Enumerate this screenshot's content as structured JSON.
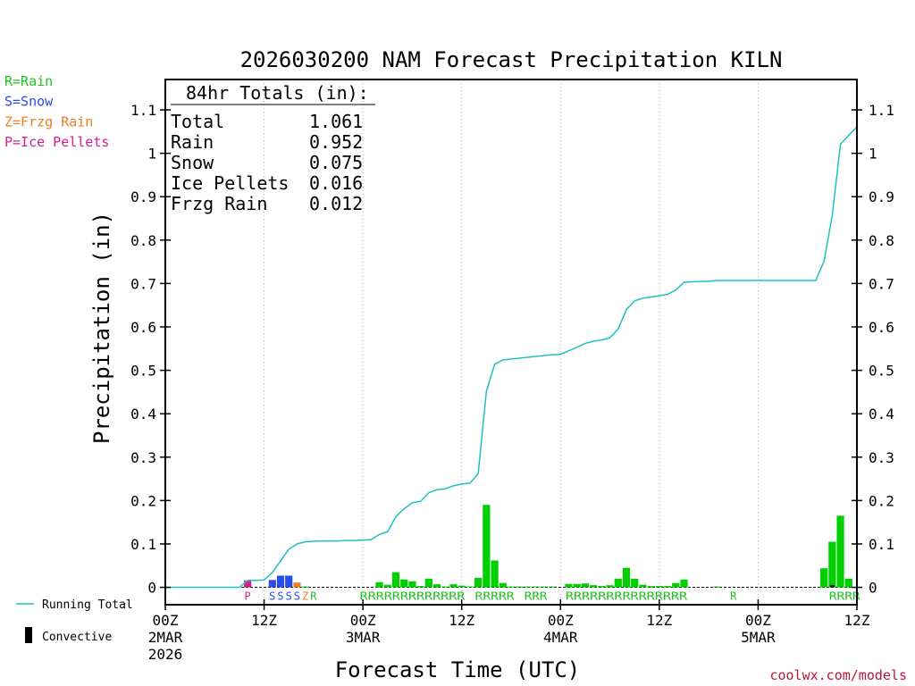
{
  "chart_data": {
    "type": "bar",
    "title": "2026030200 NAM Forecast Precipitation KILN",
    "xlabel": "Forecast Time (UTC)",
    "ylabel": "Precipitation (in)",
    "ylim": [
      -0.04,
      1.17
    ],
    "yticks": [
      0,
      0.1,
      0.2,
      0.3,
      0.4,
      0.5,
      0.6,
      0.7,
      0.8,
      0.9,
      1,
      1.1
    ],
    "ytick_labels": [
      "0",
      "0.1",
      "0.2",
      "0.3",
      "0.4",
      "0.5",
      "0.6",
      "0.7",
      "0.8",
      "0.9",
      "1",
      "1.1"
    ],
    "x_range_hours": [
      0,
      84
    ],
    "xticks": [
      {
        "hour": 0,
        "lines": [
          "00Z",
          "2MAR",
          "2026"
        ]
      },
      {
        "hour": 12,
        "lines": [
          "12Z"
        ]
      },
      {
        "hour": 24,
        "lines": [
          "00Z",
          "3MAR"
        ]
      },
      {
        "hour": 36,
        "lines": [
          "12Z"
        ]
      },
      {
        "hour": 48,
        "lines": [
          "00Z",
          "4MAR"
        ]
      },
      {
        "hour": 60,
        "lines": [
          "12Z"
        ]
      },
      {
        "hour": 72,
        "lines": [
          "00Z",
          "5MAR"
        ]
      },
      {
        "hour": 84,
        "lines": [
          "12Z"
        ]
      }
    ],
    "grid_hours": [
      12,
      24,
      36,
      48,
      60,
      72
    ],
    "ptype_legend": [
      {
        "label": "R=Rain",
        "color": "#22c022"
      },
      {
        "label": "S=Snow",
        "color": "#2a4de8"
      },
      {
        "label": "Z=Frzg Rain",
        "color": "#e98024"
      },
      {
        "label": "P=Ice Pellets",
        "color": "#d81c8c"
      }
    ],
    "totals_header": "84hr Totals (in):",
    "totals": [
      {
        "label": "Total",
        "value": "1.061"
      },
      {
        "label": "Rain",
        "value": "0.952"
      },
      {
        "label": "Snow",
        "value": "0.075"
      },
      {
        "label": "Ice Pellets",
        "value": "0.016"
      },
      {
        "label": "Frzg Rain",
        "value": "0.012"
      }
    ],
    "bars": [
      {
        "hour": 10,
        "value": 0.016,
        "type": "P"
      },
      {
        "hour": 13,
        "value": 0.017,
        "type": "S"
      },
      {
        "hour": 14,
        "value": 0.027,
        "type": "S"
      },
      {
        "hour": 15,
        "value": 0.027,
        "type": "S"
      },
      {
        "hour": 16,
        "value": 0.011,
        "type": "Z"
      },
      {
        "hour": 17,
        "value": 0.002,
        "type": "R"
      },
      {
        "hour": 26,
        "value": 0.012,
        "type": "R"
      },
      {
        "hour": 27,
        "value": 0.006,
        "type": "R"
      },
      {
        "hour": 28,
        "value": 0.035,
        "type": "R"
      },
      {
        "hour": 29,
        "value": 0.018,
        "type": "R"
      },
      {
        "hour": 30,
        "value": 0.014,
        "type": "R"
      },
      {
        "hour": 31,
        "value": 0.003,
        "type": "R"
      },
      {
        "hour": 32,
        "value": 0.02,
        "type": "R"
      },
      {
        "hour": 33,
        "value": 0.007,
        "type": "R"
      },
      {
        "hour": 34,
        "value": 0.002,
        "type": "R"
      },
      {
        "hour": 35,
        "value": 0.007,
        "type": "R"
      },
      {
        "hour": 36,
        "value": 0.004,
        "type": "R"
      },
      {
        "hour": 37,
        "value": 0.002,
        "type": "R"
      },
      {
        "hour": 38,
        "value": 0.022,
        "type": "R"
      },
      {
        "hour": 39,
        "value": 0.19,
        "type": "R"
      },
      {
        "hour": 40,
        "value": 0.062,
        "type": "R"
      },
      {
        "hour": 41,
        "value": 0.01,
        "type": "R"
      },
      {
        "hour": 42,
        "value": 0.002,
        "type": "R"
      },
      {
        "hour": 43,
        "value": 0.002,
        "type": "R"
      },
      {
        "hour": 44,
        "value": 0.002,
        "type": "R"
      },
      {
        "hour": 45,
        "value": 0.002,
        "type": "R"
      },
      {
        "hour": 46,
        "value": 0.002,
        "type": "R"
      },
      {
        "hour": 47,
        "value": 0.002,
        "type": "R"
      },
      {
        "hour": 49,
        "value": 0.008,
        "type": "R"
      },
      {
        "hour": 50,
        "value": 0.008,
        "type": "R"
      },
      {
        "hour": 51,
        "value": 0.009,
        "type": "R"
      },
      {
        "hour": 52,
        "value": 0.005,
        "type": "R"
      },
      {
        "hour": 53,
        "value": 0.003,
        "type": "R"
      },
      {
        "hour": 54,
        "value": 0.005,
        "type": "R"
      },
      {
        "hour": 55,
        "value": 0.02,
        "type": "R"
      },
      {
        "hour": 56,
        "value": 0.045,
        "type": "R"
      },
      {
        "hour": 57,
        "value": 0.02,
        "type": "R"
      },
      {
        "hour": 58,
        "value": 0.006,
        "type": "R"
      },
      {
        "hour": 59,
        "value": 0.003,
        "type": "R"
      },
      {
        "hour": 60,
        "value": 0.003,
        "type": "R"
      },
      {
        "hour": 61,
        "value": 0.003,
        "type": "R"
      },
      {
        "hour": 62,
        "value": 0.01,
        "type": "R"
      },
      {
        "hour": 63,
        "value": 0.018,
        "type": "R"
      },
      {
        "hour": 67,
        "value": 0.002,
        "type": "R"
      },
      {
        "hour": 80,
        "value": 0.044,
        "type": "R"
      },
      {
        "hour": 81,
        "value": 0.105,
        "type": "R"
      },
      {
        "hour": 82,
        "value": 0.165,
        "type": "R"
      },
      {
        "hour": 83,
        "value": 0.02,
        "type": "R"
      }
    ],
    "convective": [
      {
        "hour": 81,
        "value": 0.005
      }
    ],
    "ptype_labels": [
      {
        "hour": 10,
        "text": "P",
        "type": "P"
      },
      {
        "hour": 13,
        "text": "S",
        "type": "S"
      },
      {
        "hour": 14,
        "text": "S",
        "type": "S"
      },
      {
        "hour": 15,
        "text": "S",
        "type": "S"
      },
      {
        "hour": 16,
        "text": "S",
        "type": "S"
      },
      {
        "hour": 17,
        "text": "Z",
        "type": "Z"
      },
      {
        "hour": 18,
        "text": "R",
        "type": "R"
      },
      {
        "hour": 24,
        "text": "RRRRRRRRRRRRR",
        "type": "R"
      },
      {
        "hour": 38,
        "text": "RRRRR",
        "type": "R"
      },
      {
        "hour": 44,
        "text": "RRR",
        "type": "R"
      },
      {
        "hour": 49,
        "text": "RRRRRRRRRRRRRRR",
        "type": "R"
      },
      {
        "hour": 69,
        "text": "R",
        "type": "R"
      },
      {
        "hour": 81,
        "text": "RRRR",
        "type": "R"
      }
    ],
    "running_total": {
      "name": "Running Total",
      "color": "#20c0c0",
      "points": [
        [
          0,
          0
        ],
        [
          9,
          0
        ],
        [
          10,
          0.016
        ],
        [
          11,
          0.016
        ],
        [
          12,
          0.017
        ],
        [
          13,
          0.034
        ],
        [
          14,
          0.061
        ],
        [
          15,
          0.088
        ],
        [
          16,
          0.1
        ],
        [
          17,
          0.105
        ],
        [
          18,
          0.106
        ],
        [
          19,
          0.107
        ],
        [
          20,
          0.107
        ],
        [
          21,
          0.107
        ],
        [
          22,
          0.108
        ],
        [
          23,
          0.108
        ],
        [
          24,
          0.109
        ],
        [
          25,
          0.11
        ],
        [
          26,
          0.122
        ],
        [
          27,
          0.128
        ],
        [
          28,
          0.163
        ],
        [
          29,
          0.181
        ],
        [
          30,
          0.195
        ],
        [
          31,
          0.198
        ],
        [
          32,
          0.218
        ],
        [
          33,
          0.225
        ],
        [
          34,
          0.227
        ],
        [
          35,
          0.234
        ],
        [
          36,
          0.238
        ],
        [
          37,
          0.24
        ],
        [
          38,
          0.262
        ],
        [
          39,
          0.452
        ],
        [
          40,
          0.514
        ],
        [
          41,
          0.524
        ],
        [
          42,
          0.526
        ],
        [
          43,
          0.528
        ],
        [
          44,
          0.53
        ],
        [
          45,
          0.532
        ],
        [
          46,
          0.534
        ],
        [
          47,
          0.536
        ],
        [
          48,
          0.537
        ],
        [
          49,
          0.545
        ],
        [
          50,
          0.553
        ],
        [
          51,
          0.562
        ],
        [
          52,
          0.567
        ],
        [
          53,
          0.57
        ],
        [
          54,
          0.575
        ],
        [
          55,
          0.595
        ],
        [
          56,
          0.64
        ],
        [
          57,
          0.66
        ],
        [
          58,
          0.666
        ],
        [
          59,
          0.669
        ],
        [
          60,
          0.672
        ],
        [
          61,
          0.675
        ],
        [
          62,
          0.685
        ],
        [
          63,
          0.703
        ],
        [
          64,
          0.704
        ],
        [
          65,
          0.705
        ],
        [
          66,
          0.705
        ],
        [
          67,
          0.707
        ],
        [
          68,
          0.707
        ],
        [
          69,
          0.707
        ],
        [
          70,
          0.707
        ],
        [
          71,
          0.707
        ],
        [
          72,
          0.707
        ],
        [
          73,
          0.707
        ],
        [
          74,
          0.707
        ],
        [
          75,
          0.707
        ],
        [
          76,
          0.707
        ],
        [
          77,
          0.707
        ],
        [
          78,
          0.707
        ],
        [
          79,
          0.707
        ],
        [
          80,
          0.751
        ],
        [
          81,
          0.856
        ],
        [
          82,
          1.021
        ],
        [
          83,
          1.041
        ],
        [
          84,
          1.061
        ]
      ]
    },
    "bottom_legend": [
      {
        "label": "Running Total",
        "kind": "line",
        "color": "#20c0c0"
      },
      {
        "label": "Convective",
        "kind": "bar",
        "color": "#000000"
      }
    ],
    "colors": {
      "R": "#00d000",
      "S": "#2a4de8",
      "Z": "#e98024",
      "P": "#d81c8c",
      "R_label": "#22c022",
      "convective": "#000000"
    },
    "credit": "coolwx.com/models"
  }
}
